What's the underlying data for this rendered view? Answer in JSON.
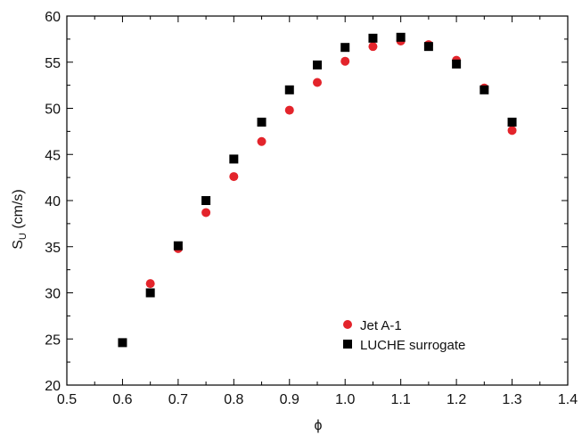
{
  "chart_data": {
    "type": "scatter",
    "title": "",
    "xlabel": "ϕ",
    "ylabel_main": "S",
    "ylabel_sub": "U",
    "ylabel_unit": " (cm/s)",
    "xlim": [
      0.5,
      1.4
    ],
    "ylim": [
      20,
      60
    ],
    "xticks": [
      "0.5",
      "0.6",
      "0.7",
      "0.8",
      "0.9",
      "1.0",
      "1.1",
      "1.2",
      "1.3",
      "1.4"
    ],
    "yticks": [
      "20",
      "25",
      "30",
      "35",
      "40",
      "45",
      "50",
      "55",
      "60"
    ],
    "grid": false,
    "legend_position": "bottom-right",
    "series": [
      {
        "name": "Jet A-1",
        "marker": "circle",
        "color": "#e3242b",
        "points": [
          [
            0.65,
            31.0
          ],
          [
            0.7,
            34.8
          ],
          [
            0.75,
            38.7
          ],
          [
            0.8,
            42.6
          ],
          [
            0.85,
            46.4
          ],
          [
            0.9,
            49.8
          ],
          [
            0.95,
            52.8
          ],
          [
            1.0,
            55.1
          ],
          [
            1.05,
            56.7
          ],
          [
            1.1,
            57.3
          ],
          [
            1.15,
            56.9
          ],
          [
            1.2,
            55.2
          ],
          [
            1.25,
            52.2
          ],
          [
            1.3,
            47.6
          ]
        ]
      },
      {
        "name": "LUCHE surrogate",
        "marker": "square",
        "color": "#000000",
        "points": [
          [
            0.6,
            24.6
          ],
          [
            0.65,
            30.0
          ],
          [
            0.7,
            35.1
          ],
          [
            0.75,
            40.0
          ],
          [
            0.8,
            44.5
          ],
          [
            0.85,
            48.5
          ],
          [
            0.9,
            52.0
          ],
          [
            0.95,
            54.7
          ],
          [
            1.0,
            56.6
          ],
          [
            1.05,
            57.6
          ],
          [
            1.1,
            57.7
          ],
          [
            1.15,
            56.7
          ],
          [
            1.2,
            54.8
          ],
          [
            1.25,
            52.0
          ],
          [
            1.3,
            48.5
          ]
        ]
      }
    ]
  }
}
